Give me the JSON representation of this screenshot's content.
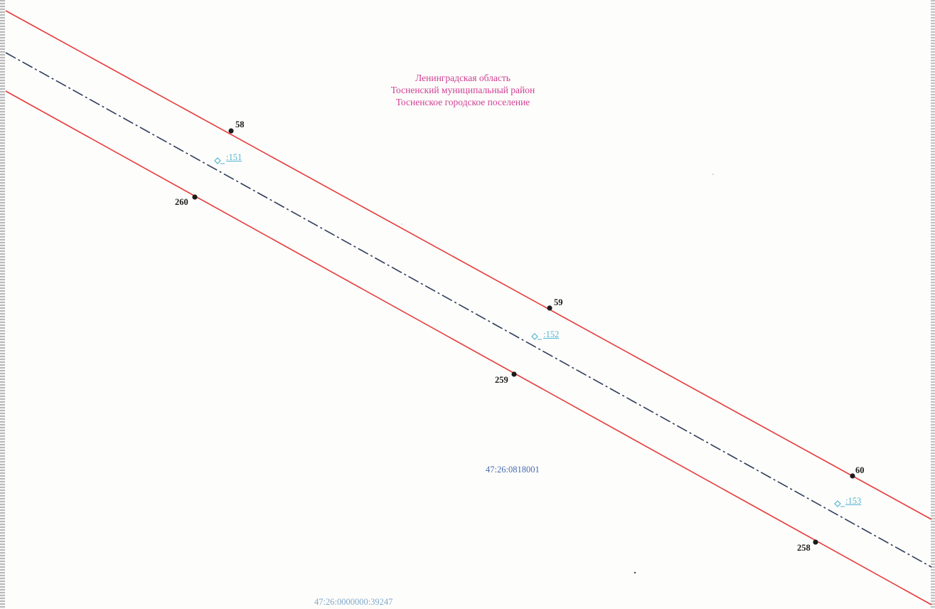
{
  "region": {
    "line1": "Ленинградская область",
    "line2": "Тосненский муниципальный район",
    "line3": "Тосненское городское поселение"
  },
  "parcels": {
    "main": "47:26:0818001",
    "bottom": "47:26:0000000:39247"
  },
  "points": {
    "p58": "58",
    "p59": "59",
    "p60": "60",
    "p258": "258",
    "p259": "259",
    "p260": "260"
  },
  "markers": {
    "m151": ":151",
    "m152": ":152",
    "m153": ":153"
  },
  "colors": {
    "boundary": "#e53b3b",
    "axis": "#2f3c5a",
    "region_text": "#cf3f93",
    "parcel_text": "#4a6ab0",
    "marker": "#55b4d2",
    "point": "#1c1c1c"
  }
}
